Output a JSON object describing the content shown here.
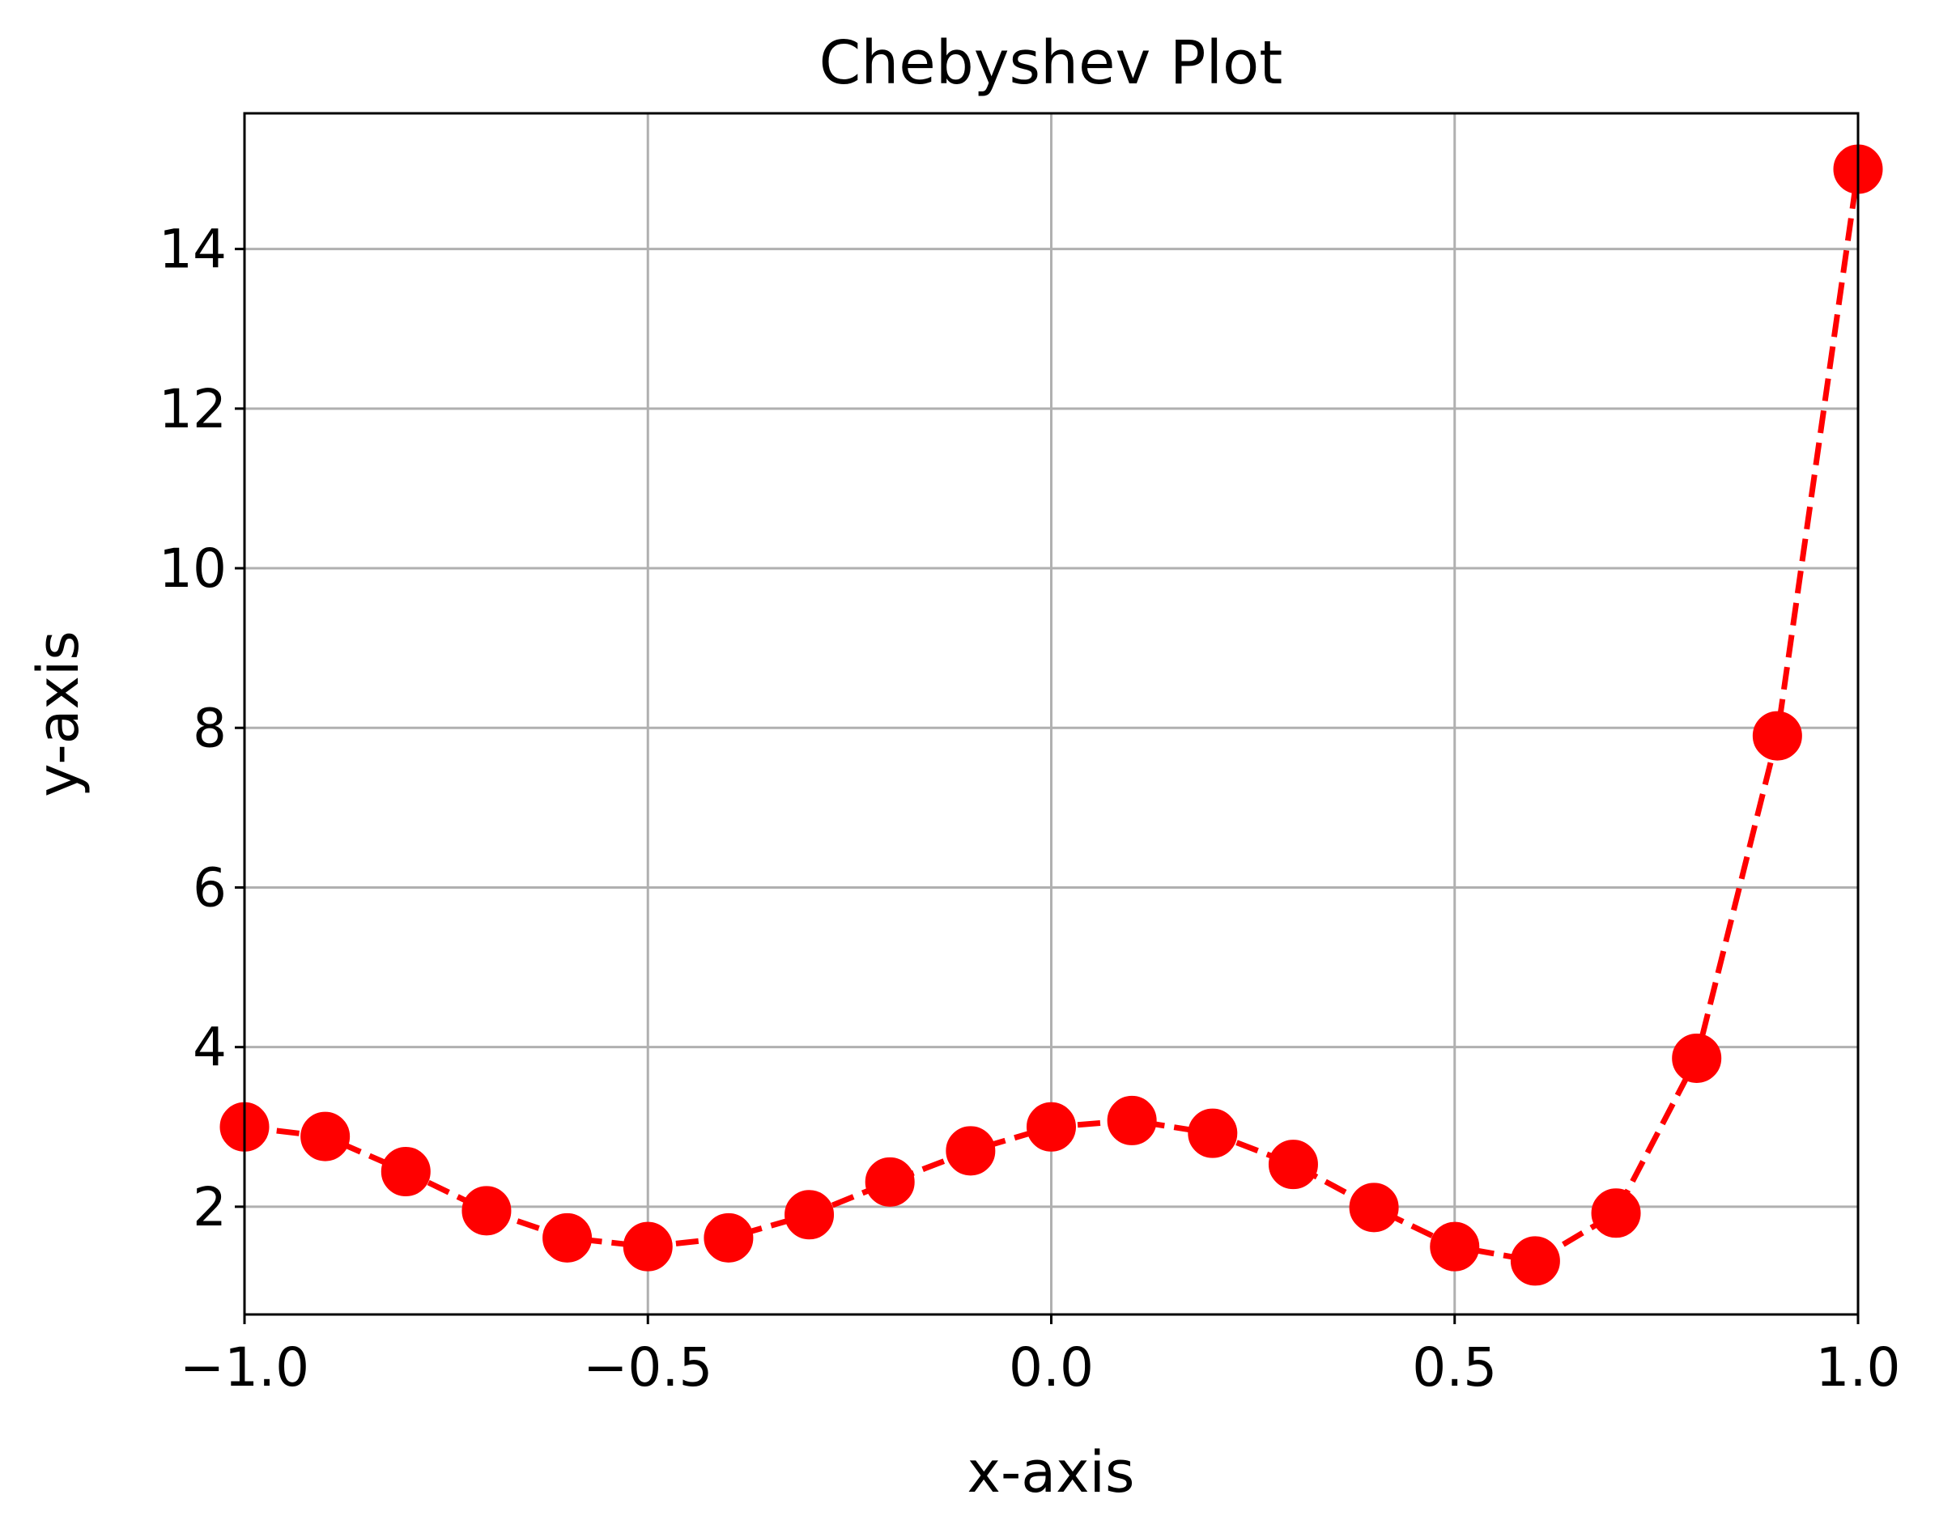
{
  "chart_data": {
    "type": "line",
    "title": "Chebyshev Plot",
    "xlabel": "x-axis",
    "ylabel": "y-axis",
    "xlim": [
      -1.0,
      1.0
    ],
    "ylim": [
      0.65,
      15.7
    ],
    "xticks": [
      -1.0,
      -0.5,
      0.0,
      0.5,
      1.0
    ],
    "xtick_labels": [
      "−1.0",
      "−0.5",
      "0.0",
      "0.5",
      "1.0"
    ],
    "yticks": [
      2,
      4,
      6,
      8,
      10,
      12,
      14
    ],
    "ytick_labels": [
      "2",
      "4",
      "6",
      "8",
      "10",
      "12",
      "14"
    ],
    "grid": true,
    "series": [
      {
        "color": "#ff0000",
        "line_style": "dashed",
        "marker": "circle",
        "x": [
          -1.0,
          -0.9,
          -0.8,
          -0.7,
          -0.6,
          -0.5,
          -0.4,
          -0.3,
          -0.2,
          -0.1,
          0.0,
          0.1,
          0.2,
          0.3,
          0.4,
          0.5,
          0.6,
          0.7,
          0.8,
          0.9,
          1.0
        ],
        "y": [
          3.0,
          2.88,
          2.44,
          1.95,
          1.61,
          1.5,
          1.61,
          1.9,
          2.31,
          2.7,
          3.0,
          3.08,
          2.92,
          2.53,
          1.99,
          1.5,
          1.32,
          1.92,
          3.86,
          7.9,
          15.0
        ]
      }
    ]
  }
}
